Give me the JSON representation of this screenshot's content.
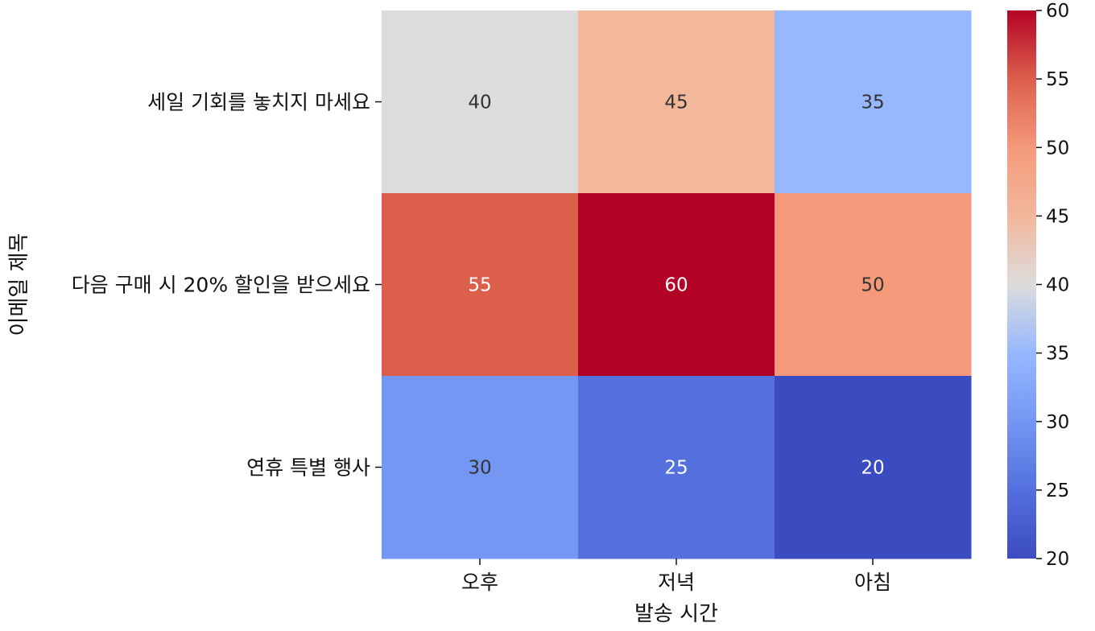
{
  "chart_data": {
    "type": "heatmap",
    "title": "",
    "xlabel": "발송 시간",
    "ylabel": "이메일 제목",
    "x_categories": [
      "오후",
      "저녁",
      "아침"
    ],
    "y_categories": [
      "세일 기회를 놓치지 마세요",
      "다음 구매 시 20% 할인을 받으세요",
      "연휴 특별 행사"
    ],
    "values": [
      [
        40,
        45,
        35
      ],
      [
        55,
        60,
        50
      ],
      [
        30,
        25,
        20
      ]
    ],
    "value_labels": [
      [
        "40",
        "45",
        "35"
      ],
      [
        "55",
        "60",
        "50"
      ],
      [
        "30",
        "25",
        "20"
      ]
    ],
    "colormap": "coolwarm",
    "color_range": [
      20,
      60
    ],
    "colorbar": {
      "ticks": [
        20,
        25,
        30,
        35,
        40,
        45,
        50,
        55,
        60
      ],
      "tick_labels": [
        "20",
        "25",
        "30",
        "35",
        "40",
        "45",
        "50",
        "55",
        "60"
      ],
      "placement": "right"
    },
    "grid": false,
    "legend": "none"
  }
}
